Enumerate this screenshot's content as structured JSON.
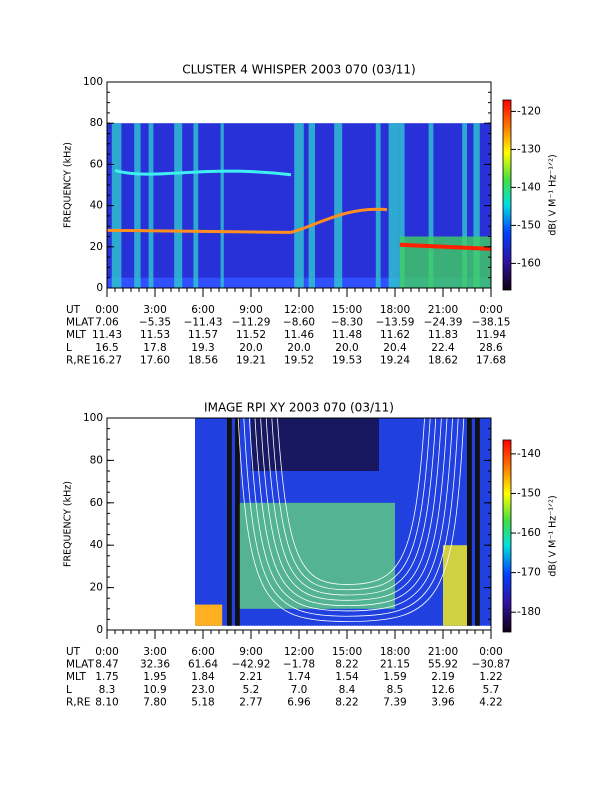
{
  "chart_data": [
    {
      "type": "spectrogram",
      "title": "CLUSTER 4 WHISPER 2003 070 (03/11)",
      "ylabel": "FREQUENCY (kHz)",
      "colorbar_label": "dB( V M⁻¹ Hz⁻¹ᐟ²)",
      "xlim": [
        0,
        24
      ],
      "xticks": [
        {
          "value": 0,
          "label": "0:00"
        },
        {
          "value": 3,
          "label": "3:00"
        },
        {
          "value": 6,
          "label": "6:00"
        },
        {
          "value": 9,
          "label": "9:00"
        },
        {
          "value": 12,
          "label": "12:00"
        },
        {
          "value": 15,
          "label": "15:00"
        },
        {
          "value": 18,
          "label": "18:00"
        },
        {
          "value": 21,
          "label": "21:00"
        },
        {
          "value": 24,
          "label": "0:00"
        }
      ],
      "ylim": [
        0,
        100
      ],
      "yticks": [
        0,
        20,
        40,
        60,
        80,
        100
      ],
      "clim": [
        -167,
        -117
      ],
      "cticks": [
        -120,
        -130,
        -140,
        -150,
        -160
      ],
      "ephemeris_time_label": "UT",
      "ephemeris": [
        {
          "label": "MLAT",
          "values": [
            "7.06",
            "−5.35",
            "−11.43",
            "−11.29",
            "−8.60",
            "−8.30",
            "−13.59",
            "−24.39",
            "−38.15"
          ]
        },
        {
          "label": "MLT",
          "values": [
            "11.43",
            "11.53",
            "11.57",
            "11.52",
            "11.46",
            "11.48",
            "11.62",
            "11.83",
            "11.94"
          ]
        },
        {
          "label": "L",
          "values": [
            "16.5",
            "17.8",
            "19.3",
            "20.0",
            "20.0",
            "20.0",
            "20.4",
            "22.4",
            "28.6"
          ]
        },
        {
          "label": "R,RE",
          "values": [
            "16.27",
            "17.60",
            "18.56",
            "19.21",
            "19.52",
            "19.53",
            "19.24",
            "18.62",
            "17.68"
          ]
        }
      ]
    },
    {
      "type": "spectrogram",
      "title": "IMAGE RPI XY 2003 070 (03/11)",
      "ylabel": "FREQUENCY (kHz)",
      "colorbar_label": "dB( V M⁻¹ Hz⁻¹ᐟ²)",
      "xlim": [
        0,
        24
      ],
      "xticks": [
        {
          "value": 0,
          "label": "0:00"
        },
        {
          "value": 3,
          "label": "3:00"
        },
        {
          "value": 6,
          "label": "6:00"
        },
        {
          "value": 9,
          "label": "9:00"
        },
        {
          "value": 12,
          "label": "12:00"
        },
        {
          "value": 15,
          "label": "15:00"
        },
        {
          "value": 18,
          "label": "18:00"
        },
        {
          "value": 21,
          "label": "21:00"
        },
        {
          "value": 24,
          "label": "0:00"
        }
      ],
      "ylim": [
        0,
        100
      ],
      "yticks": [
        0,
        20,
        40,
        60,
        80,
        100
      ],
      "clim": [
        -185,
        -136.5
      ],
      "cticks": [
        -140,
        -150,
        -160,
        -170,
        -180
      ],
      "ephemeris_time_label": "UT",
      "ephemeris": [
        {
          "label": "MLAT",
          "values": [
            "8.47",
            "32.36",
            "61.64",
            "−42.92",
            "−1.78",
            "8.22",
            "21.15",
            "55.92",
            "−30.87"
          ]
        },
        {
          "label": "MLT",
          "values": [
            "1.75",
            "1.95",
            "1.84",
            "2.21",
            "1.74",
            "1.54",
            "1.59",
            "2.19",
            "1.22"
          ]
        },
        {
          "label": "L",
          "values": [
            "8.3",
            "10.9",
            "23.0",
            "5.2",
            "7.0",
            "8.4",
            "8.5",
            "12.6",
            "5.7"
          ]
        },
        {
          "label": "R,RE",
          "values": [
            "8.10",
            "7.80",
            "5.18",
            "2.77",
            "6.96",
            "8.22",
            "7.39",
            "3.96",
            "4.22"
          ]
        }
      ]
    }
  ]
}
